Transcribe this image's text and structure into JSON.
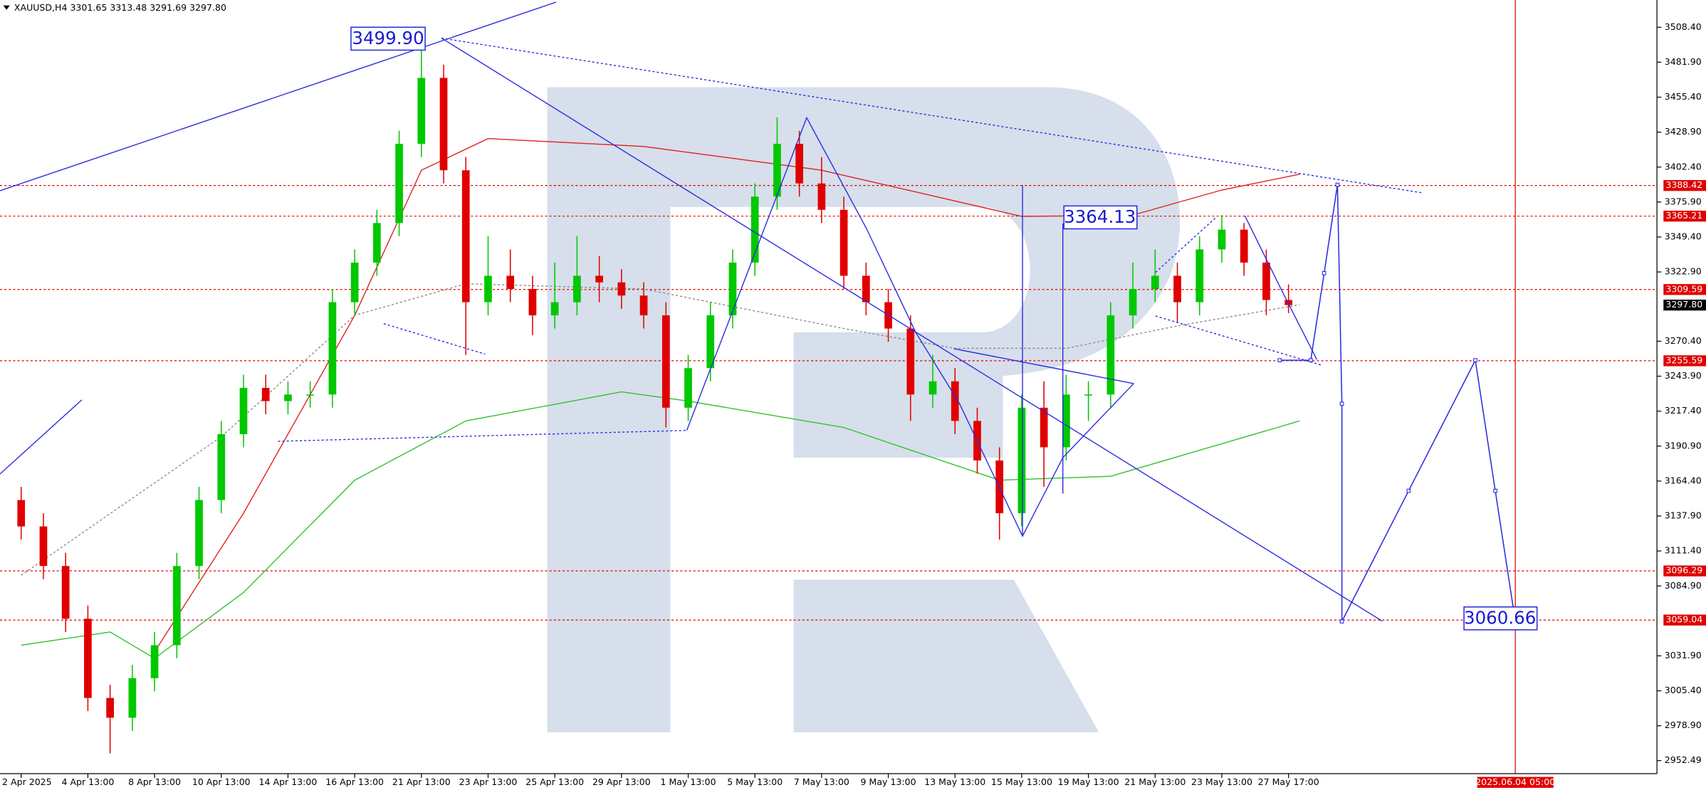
{
  "chart_data": {
    "type": "candlestick",
    "title": "XAUUSD,H4  3301.65 3313.48 3291.69 3297.80",
    "categories": [
      "2 Apr 2025",
      null,
      null,
      "4 Apr 13:00",
      null,
      null,
      "8 Apr 13:00",
      null,
      null,
      "10 Apr 13:00",
      null,
      null,
      "14 Apr 13:00",
      null,
      null,
      "16 Apr 13:00",
      null,
      null,
      "21 Apr 13:00",
      null,
      null,
      "23 Apr 13:00",
      null,
      null,
      "25 Apr 13:00",
      null,
      null,
      "29 Apr 13:00",
      null,
      null,
      "1 May 13:00",
      null,
      null,
      "5 May 13:00",
      null,
      null,
      "7 May 13:00",
      null,
      null,
      "9 May 13:00",
      null,
      null,
      "13 May 13:00",
      null,
      null,
      "15 May 13:00",
      null,
      null,
      "19 May 13:00",
      null,
      null,
      "21 May 13:00",
      null,
      null,
      "23 May 13:00",
      null,
      null,
      "27 May 17:00"
    ],
    "open": [
      3150,
      3130,
      3100,
      3060,
      3000,
      2985,
      3015,
      3040,
      3100,
      3150,
      3200,
      3235,
      3225,
      3230,
      3230,
      3300,
      3330,
      3360,
      3420,
      3470,
      3400,
      3300,
      3320,
      3310,
      3290,
      3300,
      3320,
      3315,
      3305,
      3290,
      3220,
      3250,
      3290,
      3330,
      3380,
      3420,
      3390,
      3370,
      3320,
      3300,
      3280,
      3230,
      3240,
      3210,
      3180,
      3140,
      3220,
      3190,
      3230,
      3230,
      3290,
      3310,
      3320,
      3300,
      3340,
      3355,
      3330,
      3301.65
    ],
    "high": [
      3160,
      3140,
      3110,
      3070,
      3010,
      3025,
      3050,
      3110,
      3160,
      3210,
      3245,
      3245,
      3240,
      3240,
      3310,
      3340,
      3370,
      3430,
      3499.9,
      3480,
      3410,
      3350,
      3340,
      3320,
      3330,
      3350,
      3335,
      3325,
      3315,
      3300,
      3260,
      3300,
      3340,
      3390,
      3440,
      3430,
      3410,
      3380,
      3330,
      3310,
      3290,
      3260,
      3250,
      3220,
      3190,
      3230,
      3240,
      3245,
      3240,
      3300,
      3330,
      3340,
      3330,
      3350,
      3366,
      3360,
      3340,
      3313.48
    ],
    "low": [
      3120,
      3090,
      3050,
      2990,
      2958,
      2975,
      3005,
      3030,
      3090,
      3140,
      3190,
      3215,
      3215,
      3220,
      3220,
      3290,
      3320,
      3350,
      3410,
      3390,
      3260,
      3290,
      3300,
      3275,
      3280,
      3290,
      3300,
      3295,
      3280,
      3205,
      3210,
      3240,
      3280,
      3320,
      3370,
      3380,
      3360,
      3310,
      3290,
      3270,
      3210,
      3220,
      3200,
      3170,
      3120,
      3130,
      3160,
      3180,
      3210,
      3220,
      3280,
      3300,
      3285,
      3290,
      3330,
      3320,
      3290,
      3291.69
    ],
    "close": [
      3130,
      3100,
      3060,
      3000,
      2985,
      3015,
      3040,
      3100,
      3150,
      3200,
      3235,
      3225,
      3230,
      3230,
      3300,
      3330,
      3360,
      3420,
      3470,
      3400,
      3300,
      3320,
      3310,
      3290,
      3300,
      3320,
      3315,
      3305,
      3290,
      3220,
      3250,
      3290,
      3330,
      3380,
      3420,
      3390,
      3370,
      3320,
      3300,
      3280,
      3230,
      3240,
      3210,
      3180,
      3140,
      3220,
      3190,
      3230,
      3230,
      3290,
      3310,
      3320,
      3300,
      3340,
      3355,
      3330,
      3301.65,
      3297.8
    ],
    "up_color": "#00c800",
    "down_color": "#e00000",
    "indicators": [
      {
        "color": "#e02020",
        "dashed": false,
        "x": [
          6,
          10,
          15,
          18,
          21,
          28,
          36,
          45,
          50,
          54,
          57.5
        ],
        "values": [
          3035,
          3140,
          3290,
          3400,
          3424,
          3418,
          3400,
          3365,
          3366,
          3385,
          3397
        ]
      },
      {
        "color": "#30c030",
        "dashed": false,
        "x": [
          0,
          4,
          6,
          10,
          15,
          20,
          27,
          30,
          37,
          44,
          49,
          57.5
        ],
        "values": [
          3040,
          3050,
          3030,
          3080,
          3165,
          3210,
          3232,
          3225,
          3205,
          3165,
          3168,
          3210
        ]
      },
      {
        "color": "#888888",
        "dashed": true,
        "x": [
          0,
          9,
          15,
          20,
          28,
          37,
          42,
          47,
          52,
          57.5
        ],
        "values": [
          3093,
          3198,
          3290,
          3314,
          3310,
          3280,
          3265,
          3265,
          3282,
          3298
        ]
      }
    ],
    "forecast": {
      "color": "#2a2ae0",
      "x": [
        56.6,
        58.0,
        58.6,
        59.2,
        59.4,
        59.4,
        62.4,
        65.4,
        66.3,
        67.2
      ],
      "values": [
        3256,
        3256,
        3322,
        3389,
        3223,
        3058,
        3157,
        3256,
        3157,
        3058
      ]
    },
    "levels": [
      3388.42,
      3365.21,
      3309.59,
      3255.59,
      3096.29,
      3059.04
    ],
    "level_color": "#e00000",
    "price_line": {
      "value": 3297.8,
      "label": "3297.80"
    },
    "time_marker": {
      "x": 67.2,
      "label": "2025.06.04 05:00"
    },
    "annotations": [
      "3499.90",
      "3364.13",
      "3060.66"
    ],
    "xlim": [
      -0.952,
      73.57
    ],
    "ylim": [
      2942.6,
      3529.05
    ],
    "yticks": [
      {
        "value": 3508.4,
        "label": "3508.40"
      },
      {
        "value": 3481.9,
        "label": "3481.90"
      },
      {
        "value": 3455.4,
        "label": "3455.40"
      },
      {
        "value": 3428.9,
        "label": "3428.90"
      },
      {
        "value": 3402.4,
        "label": "3402.40"
      },
      {
        "value": 3375.9,
        "label": "3375.90"
      },
      {
        "value": 3349.4,
        "label": "3349.40"
      },
      {
        "value": 3322.9,
        "label": "3322.90"
      },
      {
        "value": 3270.4,
        "label": "3270.40"
      },
      {
        "value": 3243.9,
        "label": "3243.90"
      },
      {
        "value": 3217.4,
        "label": "3217.40"
      },
      {
        "value": 3190.9,
        "label": "3190.90"
      },
      {
        "value": 3164.4,
        "label": "3164.40"
      },
      {
        "value": 3137.9,
        "label": "3137.90"
      },
      {
        "value": 3111.4,
        "label": "3111.40"
      },
      {
        "value": 3084.9,
        "label": "3084.90"
      },
      {
        "value": 3031.9,
        "label": "3031.90"
      },
      {
        "value": 3005.4,
        "label": "3005.40"
      },
      {
        "value": 2978.9,
        "label": "2978.90"
      },
      2952.49
    ]
  }
}
